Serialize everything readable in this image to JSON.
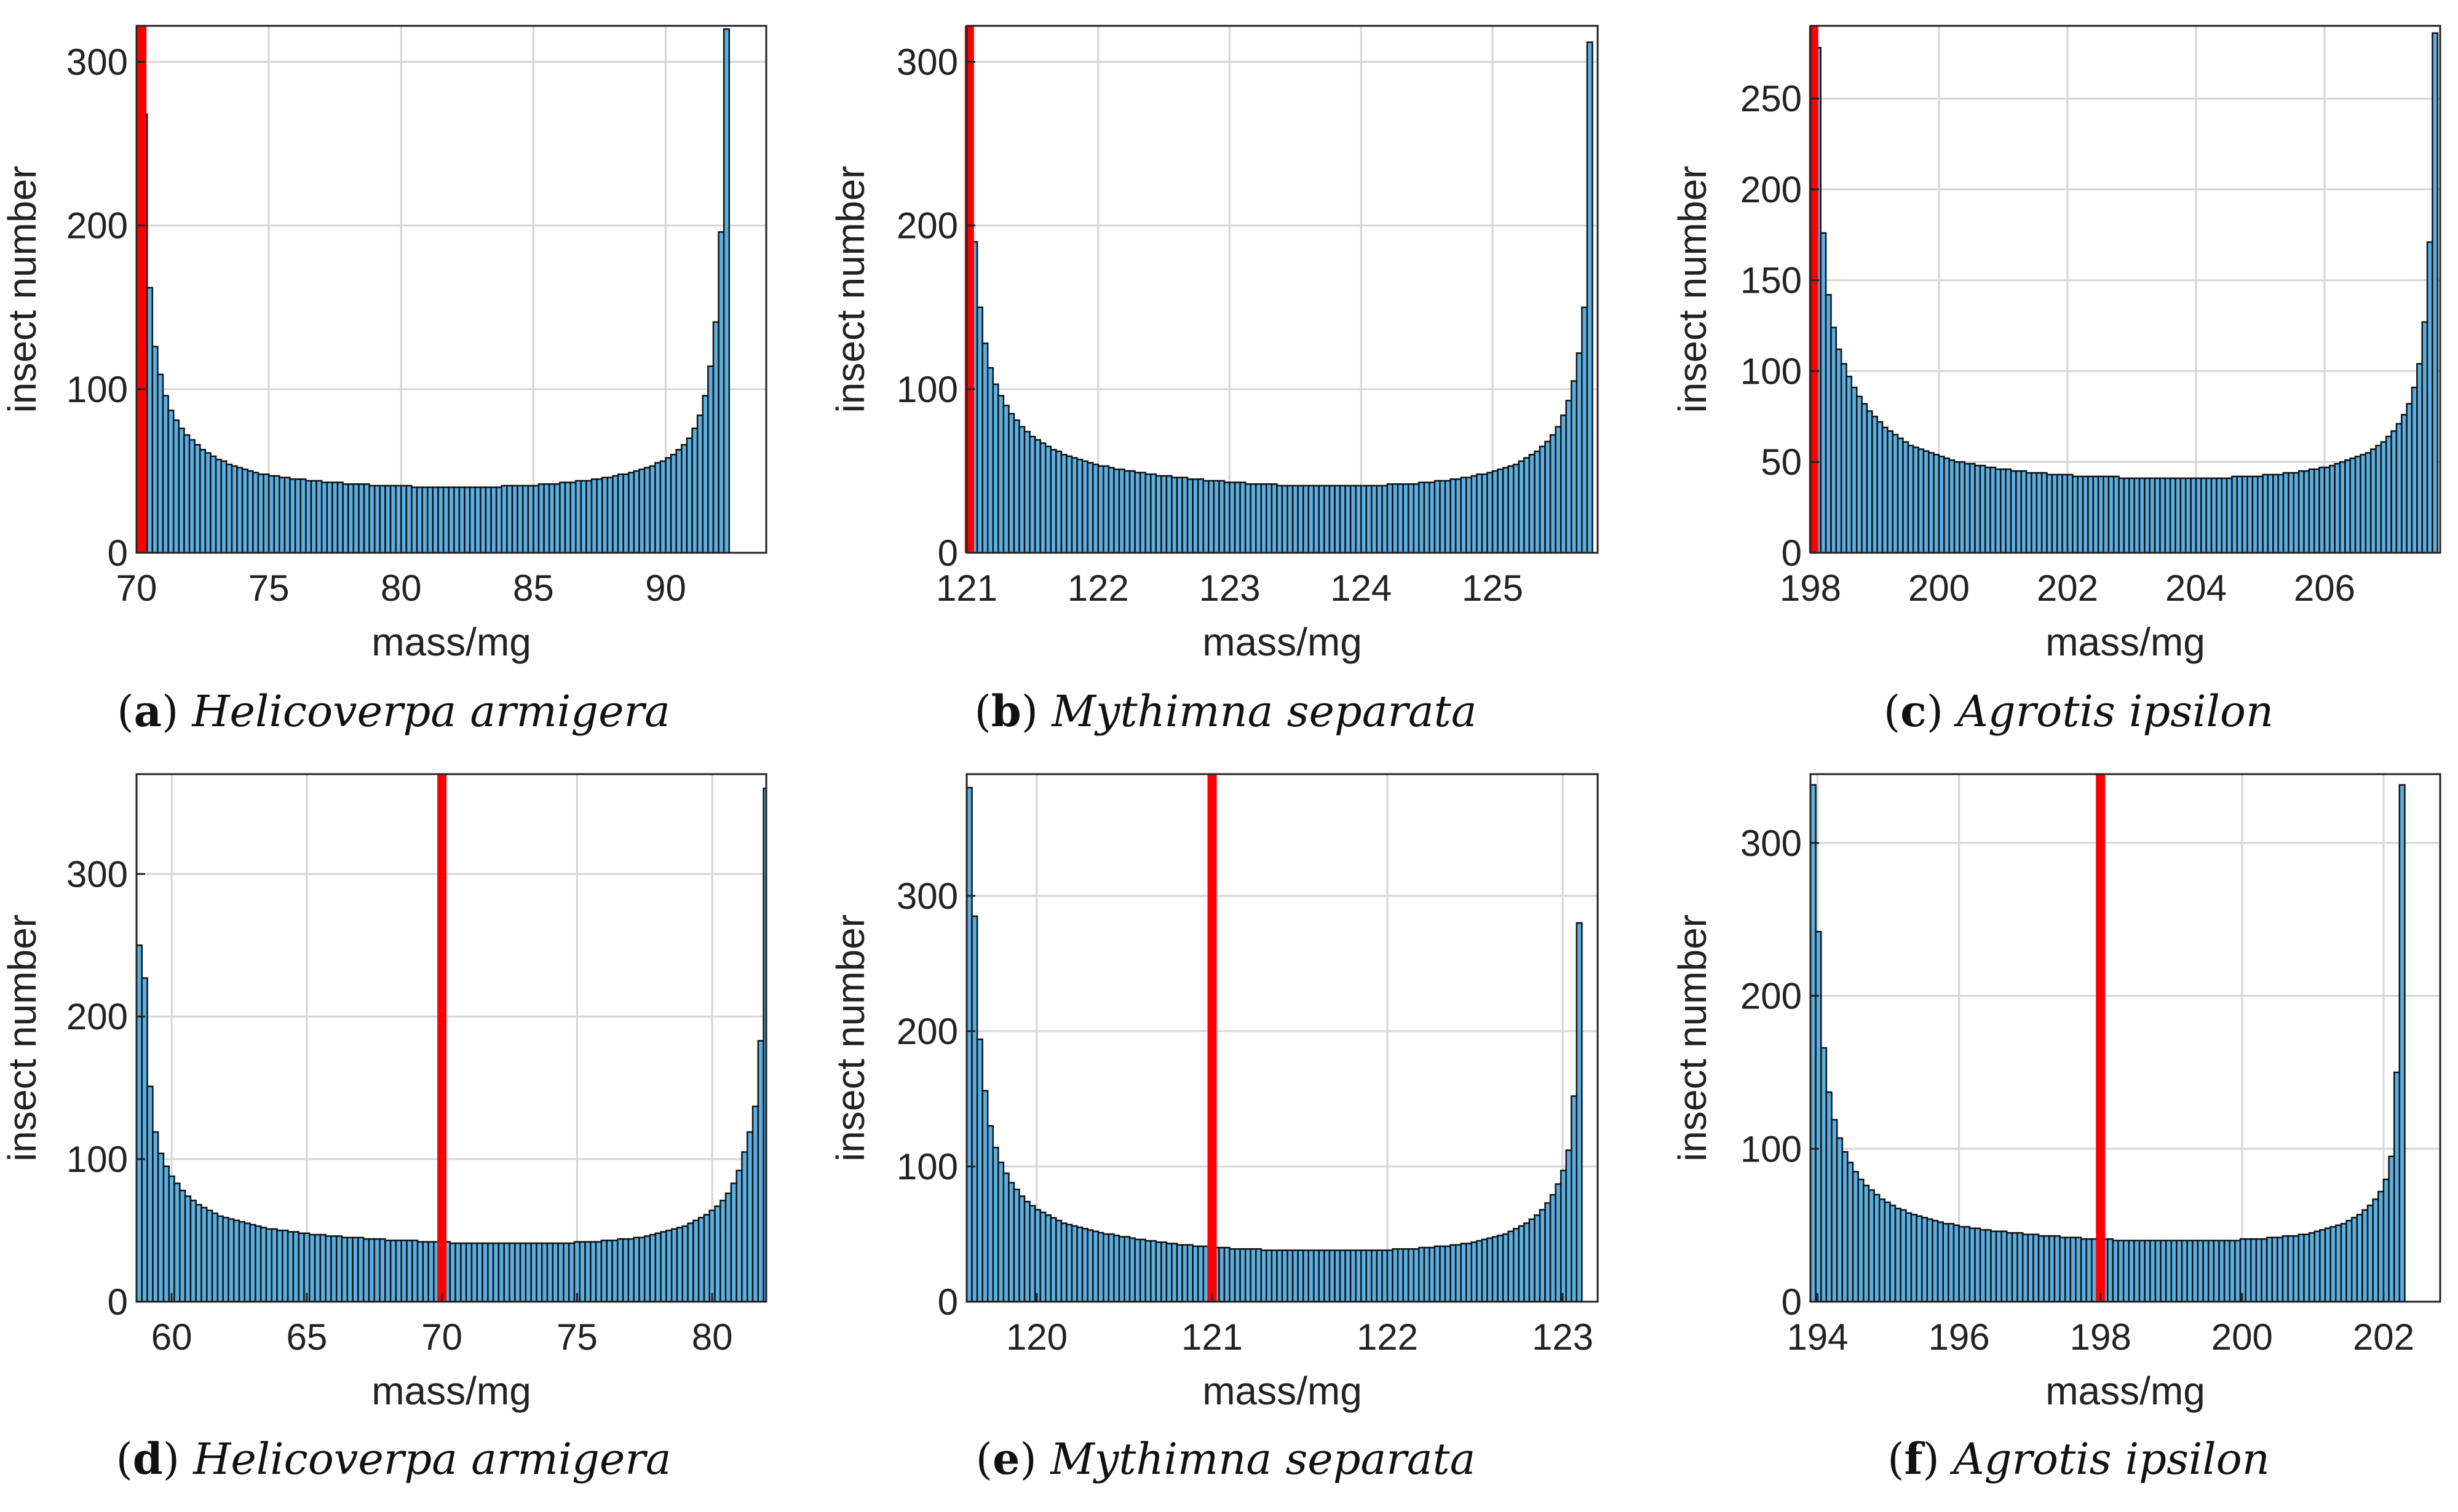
{
  "figure": {
    "bar_color": "#5aaee0",
    "bar_edge_color": "#111111",
    "marker_color": "#ff0000",
    "grid_color": "#d6d6d6"
  },
  "chart_data": [
    {
      "id": "a",
      "type": "bar",
      "caption_letter": "a",
      "caption_species": "Helicoverpa armigera",
      "xlabel": "mass/mg",
      "ylabel": "insect number",
      "xlim": [
        70,
        93.8
      ],
      "ylim": [
        0,
        322
      ],
      "xticks": [
        70,
        75,
        80,
        85,
        90
      ],
      "yticks": [
        0,
        100,
        200,
        300
      ],
      "marker_x": 70.2,
      "bin_start": 70,
      "bin_width": 0.2,
      "values": [
        320,
        268,
        162,
        126,
        109,
        96,
        87,
        81,
        76,
        72,
        69,
        66,
        63,
        61,
        59,
        57,
        56,
        54,
        53,
        52,
        51,
        50,
        49,
        48,
        48,
        47,
        47,
        46,
        46,
        45,
        45,
        45,
        44,
        44,
        44,
        43,
        43,
        43,
        43,
        42,
        42,
        42,
        42,
        42,
        41,
        41,
        41,
        41,
        41,
        41,
        41,
        41,
        40,
        40,
        40,
        40,
        40,
        40,
        40,
        40,
        40,
        40,
        40,
        40,
        40,
        40,
        40,
        40,
        40,
        41,
        41,
        41,
        41,
        41,
        41,
        41,
        42,
        42,
        42,
        42,
        43,
        43,
        43,
        44,
        44,
        44,
        45,
        45,
        46,
        46,
        47,
        48,
        48,
        49,
        50,
        51,
        52,
        53,
        55,
        56,
        58,
        60,
        63,
        66,
        70,
        76,
        84,
        96,
        114,
        141,
        196,
        320
      ]
    },
    {
      "id": "b",
      "type": "bar",
      "caption_letter": "b",
      "caption_species": "Mythimna separata",
      "xlabel": "mass/mg",
      "ylabel": "insect number",
      "xlim": [
        121,
        125.8
      ],
      "ylim": [
        0,
        322
      ],
      "xticks": [
        121,
        122,
        123,
        124,
        125
      ],
      "yticks": [
        0,
        100,
        200,
        300
      ],
      "marker_x": 121.02,
      "bin_start": 121,
      "bin_width": 0.04,
      "values": [
        308,
        190,
        150,
        128,
        113,
        103,
        96,
        90,
        85,
        81,
        77,
        74,
        71,
        69,
        67,
        65,
        63,
        62,
        60,
        59,
        58,
        57,
        56,
        55,
        54,
        53,
        53,
        52,
        51,
        51,
        50,
        50,
        49,
        49,
        48,
        48,
        47,
        47,
        47,
        46,
        46,
        46,
        45,
        45,
        45,
        44,
        44,
        44,
        44,
        43,
        43,
        43,
        43,
        42,
        42,
        42,
        42,
        42,
        42,
        41,
        41,
        41,
        41,
        41,
        41,
        41,
        41,
        41,
        41,
        41,
        41,
        41,
        41,
        41,
        41,
        41,
        41,
        41,
        41,
        41,
        42,
        42,
        42,
        42,
        42,
        42,
        43,
        43,
        43,
        44,
        44,
        44,
        45,
        45,
        46,
        46,
        47,
        48,
        48,
        49,
        50,
        51,
        52,
        53,
        54,
        56,
        58,
        60,
        62,
        65,
        68,
        72,
        77,
        84,
        93,
        105,
        122,
        150,
        312
      ]
    },
    {
      "id": "c",
      "type": "bar",
      "caption_letter": "c",
      "caption_species": "Agrotis ipsilon",
      "xlabel": "mass/mg",
      "ylabel": "insect number",
      "xlim": [
        198,
        207.8
      ],
      "ylim": [
        0,
        290
      ],
      "xticks": [
        198,
        200,
        202,
        204,
        206
      ],
      "yticks": [
        0,
        50,
        100,
        150,
        200,
        250
      ],
      "marker_x": 198.05,
      "bin_start": 198,
      "bin_width": 0.08,
      "values": [
        285,
        278,
        176,
        142,
        124,
        112,
        104,
        97,
        91,
        86,
        82,
        78,
        75,
        72,
        69,
        67,
        65,
        63,
        61,
        59,
        58,
        57,
        56,
        55,
        54,
        53,
        52,
        51,
        50,
        50,
        49,
        49,
        48,
        48,
        47,
        47,
        46,
        46,
        46,
        45,
        45,
        45,
        44,
        44,
        44,
        44,
        43,
        43,
        43,
        43,
        43,
        42,
        42,
        42,
        42,
        42,
        42,
        42,
        42,
        42,
        41,
        41,
        41,
        41,
        41,
        41,
        41,
        41,
        41,
        41,
        41,
        41,
        41,
        41,
        41,
        41,
        41,
        41,
        41,
        41,
        41,
        41,
        42,
        42,
        42,
        42,
        42,
        42,
        43,
        43,
        43,
        43,
        44,
        44,
        44,
        45,
        45,
        46,
        46,
        47,
        47,
        48,
        49,
        50,
        51,
        52,
        53,
        54,
        55,
        57,
        59,
        61,
        64,
        67,
        71,
        76,
        82,
        91,
        104,
        127,
        171,
        286
      ]
    },
    {
      "id": "d",
      "type": "bar",
      "caption_letter": "d",
      "caption_species": "Helicoverpa armigera",
      "xlabel": "mass/mg",
      "ylabel": "insect number",
      "xlim": [
        58.7,
        82
      ],
      "ylim": [
        0,
        370
      ],
      "xticks": [
        60,
        65,
        70,
        75,
        80
      ],
      "yticks": [
        0,
        100,
        200,
        300
      ],
      "marker_x": 70,
      "bin_start": 58.7,
      "bin_width": 0.2,
      "values": [
        250,
        227,
        151,
        119,
        104,
        95,
        88,
        83,
        78,
        74,
        71,
        68,
        66,
        64,
        62,
        60,
        59,
        58,
        57,
        56,
        55,
        54,
        53,
        52,
        51,
        51,
        50,
        50,
        49,
        49,
        48,
        48,
        47,
        47,
        47,
        46,
        46,
        46,
        45,
        45,
        45,
        45,
        44,
        44,
        44,
        44,
        43,
        43,
        43,
        43,
        43,
        43,
        42,
        42,
        42,
        42,
        42,
        42,
        41,
        41,
        41,
        41,
        41,
        41,
        41,
        41,
        41,
        41,
        41,
        41,
        41,
        41,
        41,
        41,
        41,
        41,
        41,
        41,
        41,
        41,
        41,
        42,
        42,
        42,
        42,
        42,
        43,
        43,
        43,
        44,
        44,
        44,
        45,
        45,
        46,
        47,
        48,
        49,
        50,
        51,
        52,
        53,
        55,
        57,
        59,
        61,
        64,
        67,
        71,
        76,
        83,
        92,
        105,
        119,
        137,
        183,
        360
      ]
    },
    {
      "id": "e",
      "type": "bar",
      "caption_letter": "e",
      "caption_species": "Mythimna separata",
      "xlabel": "mass/mg",
      "ylabel": "insect number",
      "xlim": [
        119.6,
        123.2
      ],
      "ylim": [
        0,
        390
      ],
      "xticks": [
        120,
        121,
        122,
        123
      ],
      "yticks": [
        0,
        100,
        200,
        300
      ],
      "marker_x": 121,
      "bin_start": 119.6,
      "bin_width": 0.03,
      "values": [
        380,
        285,
        194,
        156,
        130,
        114,
        103,
        95,
        88,
        83,
        78,
        74,
        71,
        68,
        66,
        64,
        62,
        60,
        58,
        57,
        56,
        55,
        54,
        53,
        52,
        51,
        50,
        50,
        49,
        48,
        48,
        47,
        46,
        46,
        45,
        45,
        44,
        44,
        43,
        43,
        42,
        42,
        42,
        41,
        41,
        41,
        40,
        40,
        40,
        40,
        39,
        39,
        39,
        39,
        39,
        39,
        38,
        38,
        38,
        38,
        38,
        38,
        38,
        38,
        38,
        38,
        38,
        38,
        38,
        38,
        38,
        38,
        38,
        38,
        38,
        38,
        38,
        38,
        38,
        38,
        38,
        39,
        39,
        39,
        39,
        39,
        40,
        40,
        40,
        41,
        41,
        41,
        42,
        42,
        43,
        43,
        44,
        45,
        46,
        47,
        48,
        49,
        50,
        52,
        54,
        56,
        58,
        61,
        64,
        68,
        73,
        79,
        87,
        97,
        112,
        152,
        280
      ]
    },
    {
      "id": "f",
      "type": "bar",
      "caption_letter": "f",
      "caption_species": "Agrotis ipsilon",
      "xlabel": "mass/mg",
      "ylabel": "insect number",
      "xlim": [
        193.9,
        202.8
      ],
      "ylim": [
        0,
        345
      ],
      "xticks": [
        194,
        196,
        198,
        200,
        202
      ],
      "yticks": [
        0,
        100,
        200,
        300
      ],
      "marker_x": 198,
      "bin_start": 193.9,
      "bin_width": 0.075,
      "values": [
        338,
        242,
        166,
        137,
        119,
        107,
        98,
        91,
        85,
        80,
        76,
        73,
        70,
        67,
        65,
        63,
        61,
        60,
        58,
        57,
        56,
        55,
        54,
        53,
        52,
        51,
        51,
        50,
        49,
        49,
        48,
        48,
        47,
        47,
        46,
        46,
        46,
        45,
        45,
        45,
        44,
        44,
        44,
        43,
        43,
        43,
        43,
        42,
        42,
        42,
        42,
        41,
        41,
        41,
        41,
        41,
        41,
        40,
        40,
        40,
        40,
        40,
        40,
        40,
        40,
        40,
        40,
        40,
        40,
        40,
        40,
        40,
        40,
        40,
        40,
        40,
        40,
        40,
        40,
        40,
        40,
        41,
        41,
        41,
        41,
        41,
        42,
        42,
        42,
        43,
        43,
        43,
        44,
        44,
        45,
        46,
        47,
        48,
        49,
        50,
        51,
        53,
        55,
        57,
        60,
        63,
        67,
        72,
        80,
        95,
        150,
        338
      ]
    }
  ]
}
